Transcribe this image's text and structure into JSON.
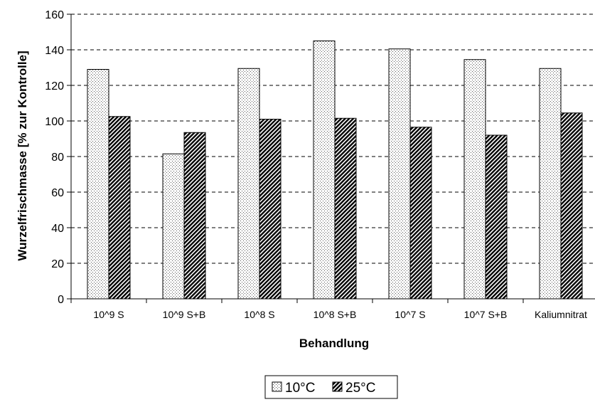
{
  "chart_data": {
    "type": "bar",
    "categories": [
      "10^9 S",
      "10^9 S+B",
      "10^8 S",
      "10^8 S+B",
      "10^7 S",
      "10^7 S+B",
      "Kaliumnitrat"
    ],
    "series": [
      {
        "name": "10°C",
        "values": [
          129,
          81.5,
          129.5,
          145,
          140.5,
          134.5,
          129.5
        ],
        "pattern": "dots"
      },
      {
        "name": "25°C",
        "values": [
          102.5,
          93.5,
          101,
          101.5,
          96.5,
          92,
          104.5
        ],
        "pattern": "hatch"
      }
    ],
    "ylim": [
      0,
      160
    ],
    "yticks": [
      0,
      20,
      40,
      60,
      80,
      100,
      120,
      140,
      160
    ],
    "xlabel": "Behandlung",
    "ylabel": "Wurzelfrischmasse [% zur Kontrolle]",
    "grid": true,
    "legend_position": "bottom-center"
  }
}
